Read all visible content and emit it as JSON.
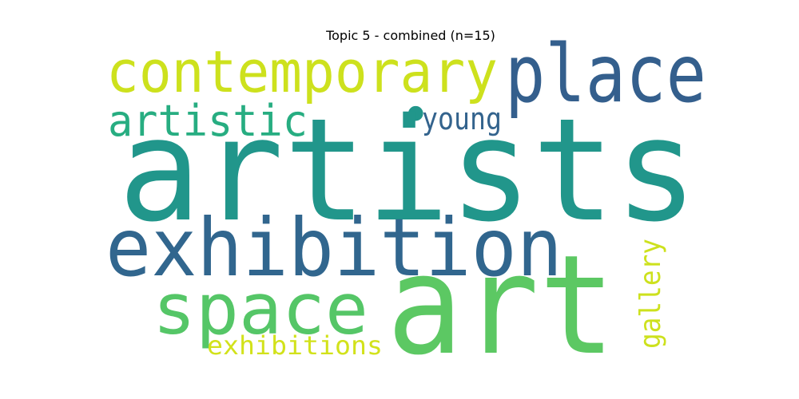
{
  "title": "Topic 5 - combined (n=15)",
  "wordcloud": {
    "words": [
      {
        "text": "artists",
        "color": "#21968b"
      },
      {
        "text": "art",
        "color": "#5cc863"
      },
      {
        "text": "exhibition",
        "color": "#31668e"
      },
      {
        "text": "place",
        "color": "#345f8d"
      },
      {
        "text": "contemporary",
        "color": "#cde11d"
      },
      {
        "text": "space",
        "color": "#55c667"
      },
      {
        "text": "artistic",
        "color": "#27ad81"
      },
      {
        "text": "young",
        "color": "#33638d"
      },
      {
        "text": "exhibitions",
        "color": "#d2e21b"
      },
      {
        "text": "gallery",
        "color": "#cde11d"
      },
      {
        "text": "•",
        "color": "#21968b"
      }
    ]
  }
}
